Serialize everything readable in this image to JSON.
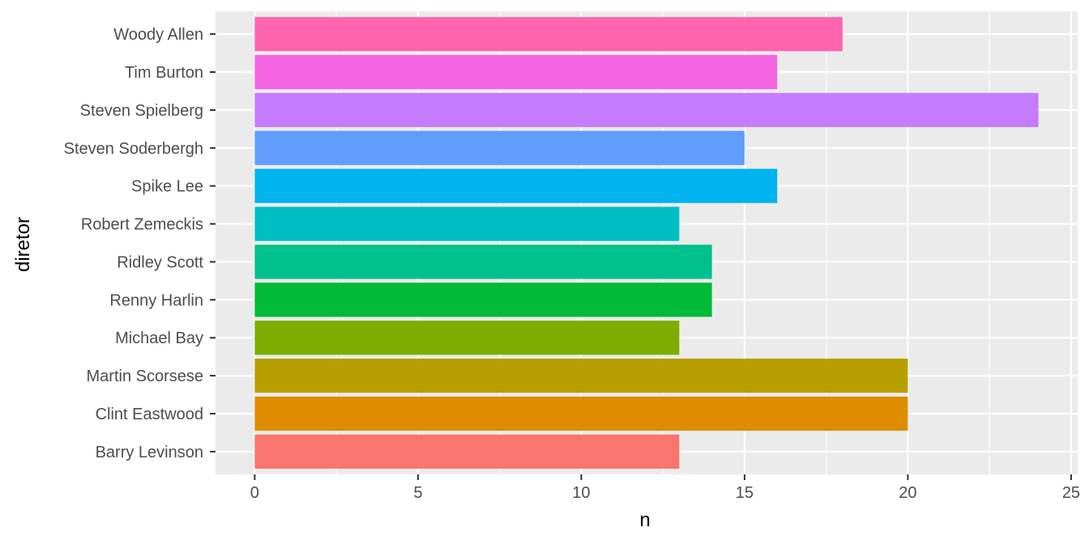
{
  "chart_data": {
    "type": "bar",
    "orientation": "horizontal",
    "xlabel": "n",
    "ylabel": "diretor",
    "xlim": [
      -1.2,
      25.2
    ],
    "xticks": [
      0,
      5,
      10,
      15,
      20,
      25
    ],
    "grid": true,
    "legend": "none",
    "categories": [
      "Barry Levinson",
      "Clint Eastwood",
      "Martin Scorsese",
      "Michael Bay",
      "Renny Harlin",
      "Ridley Scott",
      "Robert Zemeckis",
      "Spike Lee",
      "Steven Soderbergh",
      "Steven Spielberg",
      "Tim Burton",
      "Woody Allen"
    ],
    "values": [
      13,
      20,
      20,
      13,
      14,
      14,
      13,
      16,
      15,
      24,
      16,
      18
    ],
    "colors": [
      "#F8766D",
      "#DE8C00",
      "#B79F00",
      "#7CAE00",
      "#00BA38",
      "#00C08B",
      "#00BFC4",
      "#00B4F0",
      "#619CFF",
      "#C77CFF",
      "#F564E3",
      "#FF64B0"
    ],
    "panel_background": "#EBEBEB",
    "grid_color": "#FFFFFF"
  }
}
